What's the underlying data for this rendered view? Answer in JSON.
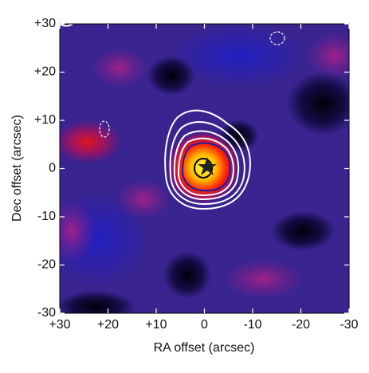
{
  "chart_data": {
    "type": "image",
    "xlabel": "RA offset (arcsec)",
    "ylabel": "Dec offset (arcsec)",
    "xlim": [
      30,
      -30
    ],
    "ylim": [
      -30,
      30
    ],
    "xticks": [
      {
        "value": 30,
        "label": "+30"
      },
      {
        "value": 20,
        "label": "+20"
      },
      {
        "value": 10,
        "label": "+10"
      },
      0,
      -10,
      -20,
      -30
    ],
    "yticks": [
      -30,
      -20,
      -10,
      0,
      {
        "value": 10,
        "label": "+10"
      },
      {
        "value": 20,
        "label": "+20"
      },
      {
        "value": 30,
        "label": "+30"
      }
    ]
  }
}
